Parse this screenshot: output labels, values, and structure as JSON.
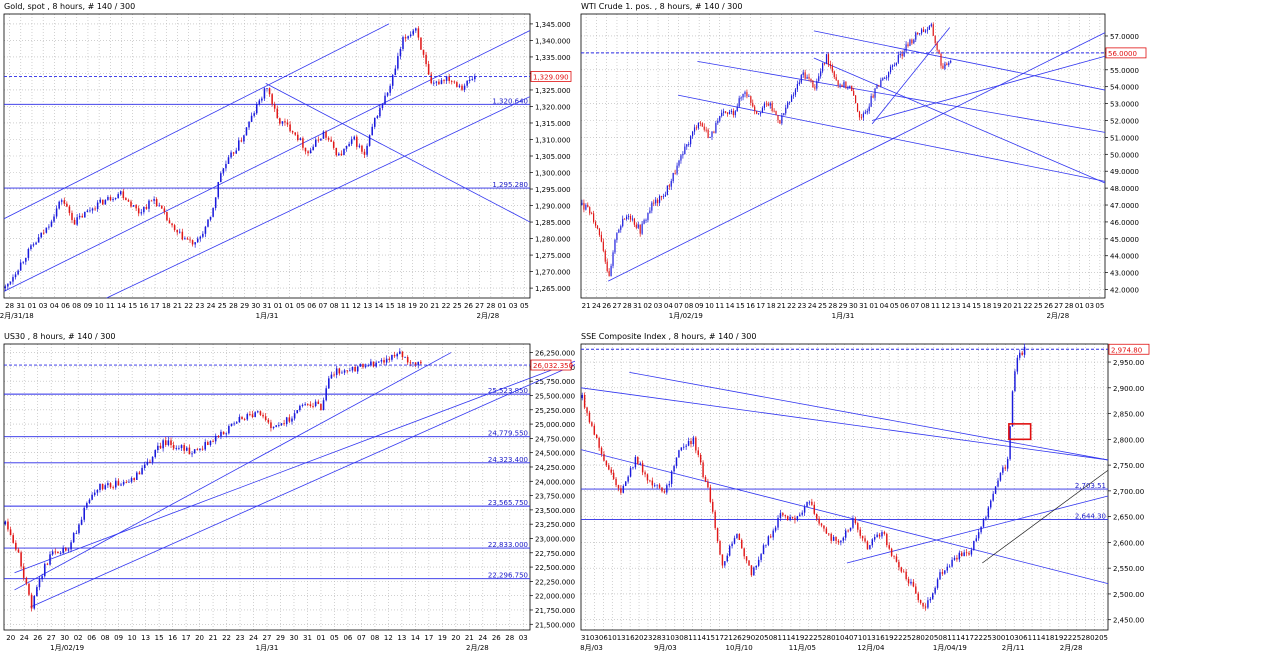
{
  "theme": {
    "background": "#ffffff",
    "grid": "#b4b4b4",
    "frame": "#000000",
    "up_candle": "#1a1adc",
    "down_candle": "#e01818",
    "trendline": "#3236f0",
    "ref_line": "#2828e6",
    "label_text": "#2020c8",
    "price_text": "#e01010",
    "highlight_box": "#e01010",
    "support_line": "#202020",
    "axis_text": "#000000"
  },
  "chart_data": [
    {
      "id": "gold",
      "type": "candlestick",
      "title": "Gold, spot , 8 hours, # 140 / 300",
      "ylim": [
        1262000,
        1348000
      ],
      "y_ticks": [
        1265000,
        1270000,
        1275000,
        1280000,
        1285000,
        1290000,
        1295000,
        1300000,
        1305000,
        1310000,
        1315000,
        1320000,
        1325000,
        1330000,
        1335000,
        1340000,
        1345000
      ],
      "y_tick_labels": [
        "1,265.000",
        "1,270.000",
        "1,275.000",
        "1,280.000",
        "1,285.000",
        "1,290.000",
        "1,295.000",
        "1,300.000",
        "1,305.000",
        "1,310.000",
        "1,315.000",
        "1,320.000",
        "1,325.000",
        "1,330.000",
        "1,335.000",
        "1,340.000",
        "1,345.000"
      ],
      "x_tick_labels": [
        "28",
        "31",
        "01",
        "03",
        "04",
        "06",
        "08",
        "09",
        "10",
        "11",
        "14",
        "15",
        "16",
        "17",
        "18",
        "21",
        "22",
        "23",
        "24",
        "25",
        "28",
        "29",
        "30",
        "31",
        "01",
        "01",
        "05",
        "06",
        "07",
        "08",
        "11",
        "12",
        "13",
        "14",
        "15",
        "18",
        "19",
        "20",
        "21",
        "22",
        "25",
        "26",
        "27",
        "28",
        "01",
        "03",
        "05"
      ],
      "period_labels": [
        {
          "text": "12月/31/18",
          "at": 0.02
        },
        {
          "text": "1月/31",
          "at": 0.5
        },
        {
          "text": "2月/28",
          "at": 0.92
        }
      ],
      "price_levels": [
        {
          "value": 1320640,
          "label": "1,320.640"
        },
        {
          "value": 1295280,
          "label": "1,295.280"
        }
      ],
      "current": {
        "value": 1329090,
        "label": "1,329.090"
      },
      "path_points": [
        [
          0,
          1265
        ],
        [
          8,
          1275
        ],
        [
          16,
          1283
        ],
        [
          22,
          1292
        ],
        [
          27,
          1285
        ],
        [
          35,
          1290
        ],
        [
          45,
          1294
        ],
        [
          52,
          1288
        ],
        [
          58,
          1292
        ],
        [
          66,
          1282
        ],
        [
          74,
          1278
        ],
        [
          80,
          1286
        ],
        [
          84,
          1300
        ],
        [
          92,
          1310
        ],
        [
          98,
          1320
        ],
        [
          102,
          1326
        ],
        [
          106,
          1316
        ],
        [
          112,
          1313
        ],
        [
          118,
          1306
        ],
        [
          124,
          1312
        ],
        [
          130,
          1305
        ],
        [
          136,
          1310
        ],
        [
          140,
          1305
        ],
        [
          144,
          1316
        ],
        [
          150,
          1326
        ],
        [
          155,
          1340
        ],
        [
          160,
          1344
        ],
        [
          166,
          1326
        ],
        [
          172,
          1329
        ],
        [
          178,
          1326
        ],
        [
          183,
          1329
        ]
      ],
      "trendlines": [
        {
          "x1": 0,
          "y1": 1286,
          "x2": 150,
          "y2": 1345
        },
        {
          "x1": 0,
          "y1": 1264,
          "x2": 205,
          "y2": 1343
        },
        {
          "x1": 40,
          "y1": 1262,
          "x2": 205,
          "y2": 1323
        },
        {
          "x1": 102,
          "y1": 1327,
          "x2": 205,
          "y2": 1285
        }
      ],
      "x_slots": 205
    },
    {
      "id": "wti",
      "type": "candlestick",
      "title": "WTI Crude 1. pos. , 8 hours, # 140 / 300",
      "ylim": [
        41.5,
        58.3
      ],
      "y_ticks": [
        42,
        43,
        44,
        45,
        46,
        47,
        48,
        49,
        50,
        51,
        52,
        53,
        54,
        55,
        56,
        57
      ],
      "y_tick_labels": [
        "42.0000",
        "43.0000",
        "44.0000",
        "45.0000",
        "46.0000",
        "47.0000",
        "48.0000",
        "49.0000",
        "50.0000",
        "51.0000",
        "52.0000",
        "53.0000",
        "54.0000",
        "55.0000",
        "",
        "57.0000"
      ],
      "x_tick_labels": [
        "21",
        "24",
        "26",
        "27",
        "28",
        "31",
        "02",
        "03",
        "04",
        "07",
        "08",
        "09",
        "10",
        "11",
        "14",
        "15",
        "16",
        "17",
        "18",
        "21",
        "22",
        "23",
        "24",
        "25",
        "28",
        "29",
        "30",
        "31",
        "01",
        "04",
        "05",
        "06",
        "07",
        "08",
        "11",
        "12",
        "13",
        "14",
        "15",
        "18",
        "19",
        "20",
        "21",
        "22",
        "25",
        "26",
        "27",
        "28",
        "01",
        "03",
        "05"
      ],
      "period_labels": [
        {
          "text": "1月/02/19",
          "at": 0.2
        },
        {
          "text": "1月/31",
          "at": 0.5
        },
        {
          "text": "2月/28",
          "at": 0.91
        }
      ],
      "price_levels": [],
      "current": {
        "value": 56.0,
        "label": "56.0000"
      },
      "path_points": [
        [
          0,
          47
        ],
        [
          5,
          46.5
        ],
        [
          10,
          45
        ],
        [
          14,
          42.6
        ],
        [
          18,
          45.5
        ],
        [
          24,
          46.5
        ],
        [
          30,
          45.5
        ],
        [
          36,
          47
        ],
        [
          42,
          47.5
        ],
        [
          48,
          49
        ],
        [
          54,
          50.5
        ],
        [
          60,
          52
        ],
        [
          66,
          51
        ],
        [
          72,
          52.3
        ],
        [
          78,
          52.5
        ],
        [
          84,
          53.8
        ],
        [
          90,
          52.5
        ],
        [
          96,
          53
        ],
        [
          102,
          52
        ],
        [
          108,
          53.3
        ],
        [
          114,
          54.8
        ],
        [
          120,
          54
        ],
        [
          126,
          55.8
        ],
        [
          132,
          54.2
        ],
        [
          138,
          54
        ],
        [
          144,
          52
        ],
        [
          150,
          53.5
        ],
        [
          156,
          54.6
        ],
        [
          162,
          55.5
        ],
        [
          168,
          56.5
        ],
        [
          174,
          57.3
        ],
        [
          180,
          57.5
        ],
        [
          186,
          55
        ],
        [
          190,
          55.7
        ]
      ],
      "trendlines": [
        {
          "x1": 14,
          "y1": 42.5,
          "x2": 270,
          "y2": 57.2
        },
        {
          "x1": 150,
          "y1": 52,
          "x2": 270,
          "y2": 55.8
        },
        {
          "x1": 50,
          "y1": 53.5,
          "x2": 270,
          "y2": 48.4
        },
        {
          "x1": 120,
          "y1": 55.7,
          "x2": 270,
          "y2": 48.3
        },
        {
          "x1": 60,
          "y1": 55.5,
          "x2": 270,
          "y2": 51.3
        },
        {
          "x1": 120,
          "y1": 57.3,
          "x2": 270,
          "y2": 53.8
        },
        {
          "x1": 150,
          "y1": 51.8,
          "x2": 190,
          "y2": 57.5
        }
      ],
      "x_slots": 270
    },
    {
      "id": "us30",
      "type": "candlestick",
      "title": "US30 , 8 hours, # 140 / 300",
      "ylim": [
        21400,
        26400
      ],
      "y_ticks": [
        21500,
        21750,
        22000,
        22250,
        22500,
        22750,
        23000,
        23250,
        23500,
        23750,
        24000,
        24250,
        24500,
        24750,
        25000,
        25250,
        25500,
        25750,
        26000,
        26250
      ],
      "y_tick_labels": [
        "21,500.000",
        "21,750.000",
        "22,000.000",
        "22,250.000",
        "22,500.000",
        "22,750.000",
        "23,000.000",
        "23,250.000",
        "23,500.000",
        "23,750.000",
        "24,000.000",
        "24,250.000",
        "24,500.000",
        "24,750.000",
        "25,000.000",
        "25,250.000",
        "25,500.000",
        "25,750.000",
        "26,000.000",
        "26,250.000"
      ],
      "x_tick_labels": [
        "20",
        "24",
        "26",
        "27",
        "30",
        "02",
        "06",
        "08",
        "09",
        "10",
        "13",
        "15",
        "16",
        "17",
        "20",
        "21",
        "22",
        "23",
        "24",
        "27",
        "29",
        "30",
        "31",
        "01",
        "05",
        "06",
        "07",
        "08",
        "12",
        "13",
        "14",
        "17",
        "19",
        "20",
        "21",
        "24",
        "26",
        "28",
        "03"
      ],
      "period_labels": [
        {
          "text": "1月/02/19",
          "at": 0.12
        },
        {
          "text": "1月/31",
          "at": 0.5
        },
        {
          "text": "2月/28",
          "at": 0.9
        }
      ],
      "price_levels": [
        {
          "value": 25523.85,
          "label": "25,523.850"
        },
        {
          "value": 24779.55,
          "label": "24,779.550"
        },
        {
          "value": 24323.4,
          "label": "24,323.400"
        },
        {
          "value": 23565.75,
          "label": "23,565.750"
        },
        {
          "value": 22833.0,
          "label": "22,833.000"
        },
        {
          "value": 22296.75,
          "label": "22,296.750"
        }
      ],
      "current": {
        "value": 26032.35,
        "label": "26,032.350"
      },
      "path_points": [
        [
          0,
          23250
        ],
        [
          5,
          22700
        ],
        [
          10,
          21800
        ],
        [
          14,
          22400
        ],
        [
          18,
          22800
        ],
        [
          24,
          22800
        ],
        [
          30,
          23500
        ],
        [
          36,
          23900
        ],
        [
          42,
          23950
        ],
        [
          48,
          24000
        ],
        [
          54,
          24300
        ],
        [
          60,
          24700
        ],
        [
          66,
          24600
        ],
        [
          72,
          24500
        ],
        [
          78,
          24700
        ],
        [
          84,
          24900
        ],
        [
          90,
          25100
        ],
        [
          96,
          25200
        ],
        [
          102,
          24900
        ],
        [
          108,
          25100
        ],
        [
          114,
          25400
        ],
        [
          120,
          25300
        ],
        [
          124,
          25900
        ],
        [
          130,
          25950
        ],
        [
          136,
          26000
        ],
        [
          142,
          26100
        ],
        [
          146,
          26150
        ],
        [
          150,
          26250
        ],
        [
          154,
          26100
        ],
        [
          158,
          26050
        ]
      ],
      "trendlines": [
        {
          "x1": 4,
          "y1": 22100,
          "x2": 170,
          "y2": 26250
        },
        {
          "x1": 4,
          "y1": 22400,
          "x2": 220,
          "y2": 26150
        },
        {
          "x1": 10,
          "y1": 21800,
          "x2": 220,
          "y2": 26100
        }
      ],
      "x_slots": 200
    },
    {
      "id": "sse",
      "type": "candlestick",
      "title": "SSE Composite Index , 8 hours, # 140 / 300",
      "ylim": [
        2430,
        2985
      ],
      "y_ticks": [
        2450,
        2500,
        2550,
        2600,
        2650,
        2700,
        2750,
        2800,
        2850,
        2900,
        2950
      ],
      "y_tick_labels": [
        "2,450.00",
        "2,500.00",
        "2,550.00",
        "2,600.00",
        "2,650.00",
        "2,700.00",
        "2,750.00",
        "2,800.00",
        "2,850.00",
        "2,900.00",
        "2,950.00"
      ],
      "x_tick_labels": [
        "31",
        "03",
        "06",
        "10",
        "13",
        "16",
        "20",
        "23",
        "28",
        "31",
        "03",
        "08",
        "11",
        "14",
        "15",
        "17",
        "21",
        "26",
        "29",
        "02",
        "05",
        "08",
        "11",
        "14",
        "19",
        "22",
        "25",
        "28",
        "01",
        "04",
        "07",
        "10",
        "13",
        "16",
        "19",
        "22",
        "25",
        "28",
        "02",
        "05",
        "08",
        "11",
        "14",
        "17",
        "22",
        "25",
        "30",
        "01",
        "03",
        "06",
        "11",
        "14",
        "18",
        "19",
        "22",
        "25",
        "28",
        "02",
        "05"
      ],
      "period_labels": [
        {
          "text": "8月/03",
          "at": 0.02
        },
        {
          "text": "9月/03",
          "at": 0.16
        },
        {
          "text": "10月/10",
          "at": 0.3
        },
        {
          "text": "11月/05",
          "at": 0.42
        },
        {
          "text": "12月/04",
          "at": 0.55
        },
        {
          "text": "1月/04/19",
          "at": 0.7
        },
        {
          "text": "2月/11",
          "at": 0.82
        },
        {
          "text": "2月/28",
          "at": 0.93
        }
      ],
      "price_levels": [
        {
          "value": 2703.51,
          "label": "2,703.51"
        },
        {
          "value": 2644.3,
          "label": "2,644.30"
        }
      ],
      "current": {
        "value": 2974.8,
        "label": "2,974.80"
      },
      "path_points": [
        [
          0,
          2880
        ],
        [
          5,
          2810
        ],
        [
          10,
          2750
        ],
        [
          16,
          2700
        ],
        [
          22,
          2760
        ],
        [
          28,
          2720
        ],
        [
          34,
          2690
        ],
        [
          40,
          2780
        ],
        [
          46,
          2800
        ],
        [
          52,
          2700
        ],
        [
          58,
          2560
        ],
        [
          64,
          2620
        ],
        [
          70,
          2540
        ],
        [
          76,
          2600
        ],
        [
          82,
          2650
        ],
        [
          88,
          2640
        ],
        [
          94,
          2680
        ],
        [
          100,
          2620
        ],
        [
          106,
          2600
        ],
        [
          112,
          2640
        ],
        [
          118,
          2590
        ],
        [
          124,
          2620
        ],
        [
          130,
          2560
        ],
        [
          136,
          2520
        ],
        [
          142,
          2470
        ],
        [
          148,
          2540
        ],
        [
          154,
          2570
        ],
        [
          160,
          2580
        ],
        [
          166,
          2640
        ],
        [
          170,
          2700
        ],
        [
          174,
          2740
        ],
        [
          176,
          2760
        ],
        [
          178,
          2900
        ],
        [
          180,
          2960
        ],
        [
          183,
          2975
        ]
      ],
      "highlight_box": {
        "x1": 177,
        "y1": 2800,
        "x2": 186,
        "y2": 2830
      },
      "trendlines": [
        {
          "x1": 0,
          "y1": 2900,
          "x2": 218,
          "y2": 2760
        },
        {
          "x1": 20,
          "y1": 2930,
          "x2": 218,
          "y2": 2760
        },
        {
          "x1": 0,
          "y1": 2780,
          "x2": 218,
          "y2": 2520
        },
        {
          "x1": 110,
          "y1": 2560,
          "x2": 218,
          "y2": 2690
        }
      ],
      "support_line": {
        "x1": 166,
        "y1": 2560,
        "x2": 218,
        "y2": 2740
      },
      "x_slots": 218
    }
  ]
}
